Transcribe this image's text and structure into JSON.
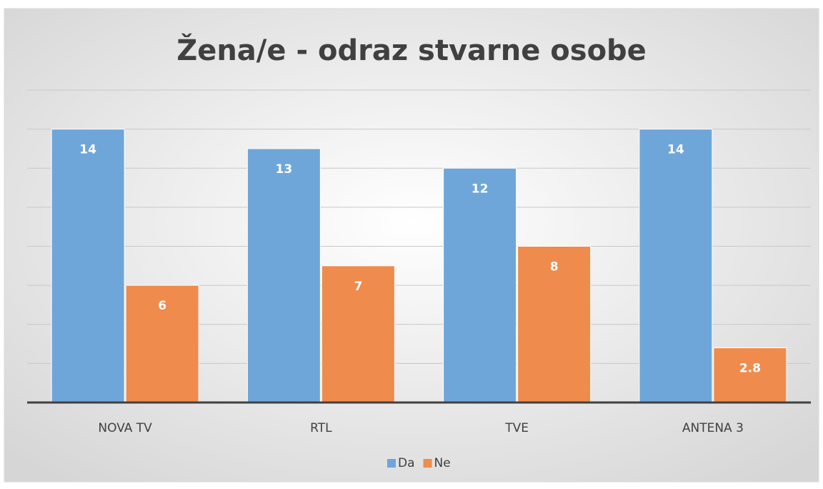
{
  "chart_data": {
    "type": "bar",
    "title": "Žena/e - odraz stvarne osobe",
    "categories": [
      "NOVA TV",
      "RTL",
      "TVE",
      "ANTENA 3"
    ],
    "series": [
      {
        "name": "Da",
        "color": "#6fa6da",
        "values": [
          14,
          13,
          12,
          14
        ]
      },
      {
        "name": "Ne",
        "color": "#ef8b4c",
        "values": [
          6,
          7,
          8,
          2.8
        ]
      }
    ],
    "ylim": [
      0,
      16
    ],
    "yticks": [
      0,
      2,
      4,
      6,
      8,
      10,
      12,
      14,
      16
    ],
    "grid": true,
    "legend": "bottom"
  }
}
